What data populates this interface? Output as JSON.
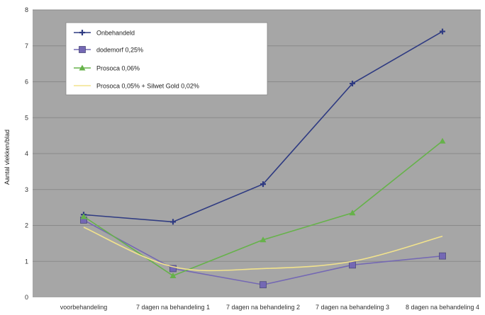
{
  "chart_data": {
    "type": "line",
    "categories": [
      "voorbehandeling",
      "7 dagen na behandeling 1",
      "7 dagen na behandeling 2",
      "7 dagen na behandeling 3",
      "8 dagen na behandeling 4"
    ],
    "ylabel": "Aantal vlekken/blad",
    "ylim": [
      0,
      8
    ],
    "yticks": [
      0,
      1,
      2,
      3,
      4,
      5,
      6,
      7,
      8
    ],
    "grid": true,
    "legend_position": "top-left",
    "plot_background": "#a6a6a6",
    "series": [
      {
        "name": "Onbehandeld",
        "color": "#2f3b82",
        "marker": "plus",
        "values": [
          2.3,
          2.1,
          3.15,
          5.95,
          7.4
        ]
      },
      {
        "name": "dodemorf 0,25%",
        "color": "#7468b4",
        "marker": "square",
        "values": [
          2.15,
          0.8,
          0.35,
          0.9,
          1.15
        ]
      },
      {
        "name": "Prosoca 0,06%",
        "color": "#66b24a",
        "marker": "triangle",
        "values": [
          2.25,
          0.6,
          1.6,
          2.35,
          4.35
        ]
      },
      {
        "name": "Prosoca 0,05% + Silwet Gold 0,02%",
        "color": "#f2e38c",
        "marker": "none",
        "values": [
          1.95,
          0.85,
          0.8,
          1.0,
          1.7
        ]
      }
    ]
  }
}
